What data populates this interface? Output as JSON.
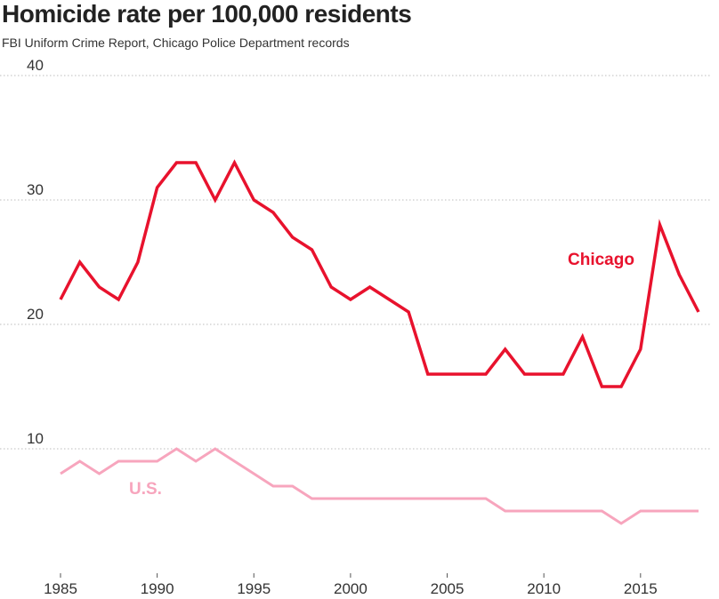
{
  "chart_data": {
    "type": "line",
    "title": "Homicide rate per 100,000 residents",
    "subtitle": "FBI Uniform Crime Report, Chicago Police Department records",
    "xlim": [
      1985,
      2018
    ],
    "ylim": [
      0,
      40
    ],
    "yticks": [
      10,
      20,
      30,
      40
    ],
    "xticks": [
      1985,
      1990,
      1995,
      2000,
      2005,
      2010,
      2015
    ],
    "grid": true,
    "x": [
      1985,
      1986,
      1987,
      1988,
      1989,
      1990,
      1991,
      1992,
      1993,
      1994,
      1995,
      1996,
      1997,
      1998,
      1999,
      2000,
      2001,
      2002,
      2003,
      2004,
      2005,
      2006,
      2007,
      2008,
      2009,
      2010,
      2011,
      2012,
      2013,
      2014,
      2015,
      2016,
      2017,
      2018
    ],
    "series": [
      {
        "name": "Chicago",
        "color": "#e8122d",
        "values": [
          22,
          25,
          23,
          22,
          25,
          31,
          33,
          33,
          30,
          33,
          30,
          29,
          27,
          26,
          23,
          22,
          23,
          22,
          21,
          16,
          16,
          16,
          16,
          18,
          16,
          16,
          16,
          19,
          15,
          15,
          18,
          28,
          24,
          21
        ]
      },
      {
        "name": "U.S.",
        "color": "#f7a5bd",
        "values": [
          8,
          9,
          8,
          9,
          9,
          9,
          10,
          9,
          10,
          9,
          8,
          7,
          7,
          6,
          6,
          6,
          6,
          6,
          6,
          6,
          6,
          6,
          6,
          5,
          5,
          5,
          5,
          5,
          5,
          4,
          5,
          5,
          5,
          5
        ]
      }
    ]
  }
}
